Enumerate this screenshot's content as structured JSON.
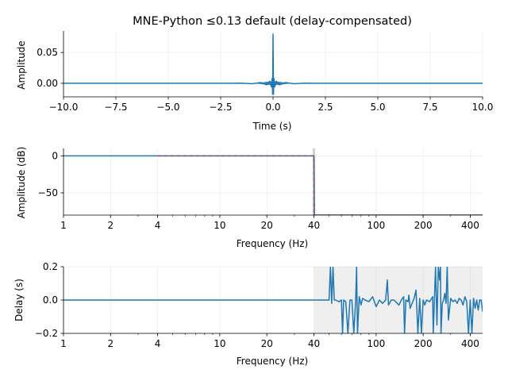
{
  "chart_data": [
    {
      "type": "line",
      "title": "MNE-Python ≤0.13 default (delay-compensated)",
      "xlabel": "Time (s)",
      "ylabel": "Amplitude",
      "xlim": [
        -10,
        10
      ],
      "ylim": [
        -0.022,
        0.085
      ],
      "xticks": [
        -10,
        -7.5,
        -5,
        -2.5,
        0,
        2.5,
        5,
        7.5,
        10
      ],
      "xticklabels": [
        "−10.0",
        "−7.5",
        "−5.0",
        "−2.5",
        "0.0",
        "2.5",
        "5.0",
        "7.5",
        "10.0"
      ],
      "yticks": [
        0,
        0.05
      ],
      "yticklabels": [
        "0.00",
        "0.05"
      ],
      "grid": true,
      "series": [
        {
          "color": "#1f77b4",
          "x": [
            -10,
            -2.0,
            -1.5,
            -1.0,
            -0.6,
            -0.3,
            -0.15,
            -0.08,
            -0.04,
            -0.02,
            0,
            0.02,
            0.04,
            0.08,
            0.15,
            0.3,
            0.6,
            1.0,
            1.5,
            2.0,
            10
          ],
          "y": [
            0,
            0,
            0.0003,
            -0.0007,
            0.0012,
            -0.0025,
            0.0035,
            -0.006,
            0.008,
            -0.018,
            0.08,
            -0.018,
            0.008,
            -0.006,
            0.0035,
            -0.0025,
            0.0012,
            -0.0007,
            0.0003,
            0,
            0
          ],
          "envelope_half_width_s": 1.8,
          "envelope_amplitude": 0.003
        }
      ]
    },
    {
      "type": "line",
      "xlabel": "Frequency (Hz)",
      "ylabel": "Amplitude (dB)",
      "xscale": "log",
      "xlim": [
        1,
        480
      ],
      "ylim": [
        -80,
        10
      ],
      "xticks": [
        1,
        2,
        4,
        10,
        20,
        40,
        100,
        200,
        400
      ],
      "xticklabels": [
        "1",
        "2",
        "4",
        "10",
        "20",
        "40",
        "100",
        "200",
        "400"
      ],
      "yticks": [
        0,
        -50
      ],
      "yticklabels": [
        "0",
        "−50"
      ],
      "grid": true,
      "series": [
        {
          "color": "#1f77b4",
          "x": [
            1,
            2,
            4,
            10,
            20,
            39.5,
            40,
            40.3,
            100,
            480
          ],
          "y": [
            0,
            0,
            0,
            0,
            0,
            0,
            0,
            -80,
            -80,
            -80
          ]
        },
        {
          "color": "#d62728",
          "style": "dashed",
          "x": [
            4,
            40,
            40,
            480
          ],
          "y": [
            0,
            0,
            -80,
            -80
          ]
        }
      ],
      "vspan": {
        "from": 39.2,
        "to": 40.8,
        "color": "#bbbbbb"
      }
    },
    {
      "type": "line",
      "xlabel": "Frequency (Hz)",
      "ylabel": "Delay (s)",
      "xscale": "log",
      "xlim": [
        1,
        480
      ],
      "ylim": [
        -0.2,
        0.2
      ],
      "xticks": [
        1,
        2,
        4,
        10,
        20,
        40,
        100,
        200,
        400
      ],
      "xticklabels": [
        "1",
        "2",
        "4",
        "10",
        "20",
        "40",
        "100",
        "200",
        "400"
      ],
      "yticks": [
        0.2,
        0,
        -0.2
      ],
      "yticklabels": [
        "0.2",
        "0.0",
        "−0.2"
      ],
      "grid": true,
      "shaded_region": {
        "from": 40,
        "to": 480,
        "color": "#efefef"
      },
      "series": [
        {
          "color": "#1f77b4",
          "x": [
            1,
            40,
            50,
            51,
            52,
            53,
            54,
            55,
            58,
            60,
            61,
            62,
            64,
            66,
            68,
            70,
            72,
            74,
            75,
            76,
            78,
            80,
            82,
            85,
            90,
            95,
            100,
            105,
            110,
            115,
            118,
            120,
            125,
            130,
            140,
            145,
            150,
            152,
            155,
            160,
            162,
            165,
            170,
            175,
            180,
            185,
            190,
            195,
            200,
            205,
            210,
            220,
            230,
            232,
            240,
            245,
            250,
            255,
            258,
            260,
            265,
            270,
            275,
            280,
            285,
            290,
            300,
            310,
            320,
            330,
            340,
            350,
            360,
            370,
            380,
            390,
            400,
            410,
            420,
            430,
            440,
            450,
            460,
            470,
            480
          ],
          "y": [
            0,
            0,
            0,
            0.2,
            -0.02,
            0.2,
            0,
            0,
            -0.01,
            0,
            -0.2,
            0,
            -0.01,
            -0.2,
            0,
            0,
            -0.2,
            0,
            0.2,
            -0.2,
            0.02,
            -0.03,
            0.01,
            0,
            -0.01,
            0.02,
            -0.04,
            0,
            -0.02,
            0,
            0.12,
            -0.03,
            0,
            0,
            -0.03,
            0,
            0.02,
            -0.2,
            0,
            -0.01,
            0.03,
            -0.05,
            -0.02,
            0.01,
            0.06,
            -0.2,
            0.01,
            -0.2,
            0,
            -0.03,
            0,
            -0.01,
            0.02,
            -0.2,
            0.2,
            -0.15,
            0.2,
            0.12,
            0.2,
            -0.2,
            -0.02,
            0,
            0.04,
            -0.02,
            0.2,
            -0.12,
            0.01,
            -0.01,
            0,
            -0.02,
            0.01,
            0,
            -0.03,
            0.02,
            -0.01,
            -0.2,
            0,
            -0.2,
            0.01,
            -0.05,
            0,
            -0.06,
            0,
            0,
            -0.07
          ]
        }
      ]
    }
  ]
}
